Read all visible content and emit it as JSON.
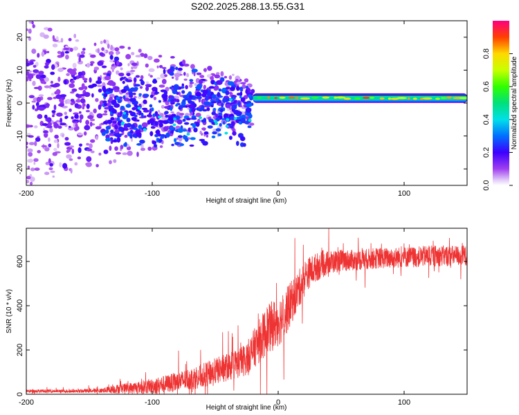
{
  "figure": {
    "title": "S202.2025.288.13.55.G31"
  },
  "chart_data": [
    {
      "type": "heatmap",
      "name": "spectrogram",
      "xlabel": "Height of straight line (km)",
      "ylabel": "Frequency (Hz)",
      "xlim": [
        -200,
        150
      ],
      "ylim": [
        -25,
        25
      ],
      "xticks": [
        -200,
        -100,
        0,
        100
      ],
      "yticks": [
        -20,
        -10,
        0,
        10,
        20
      ],
      "colorbar": {
        "label": "Normalized spectral amplitude",
        "range": [
          0.0,
          1.0
        ],
        "ticks": [
          0.0,
          0.2,
          0.4,
          0.6,
          0.8
        ]
      },
      "features": {
        "scatter_region_x": [
          -200,
          -20
        ],
        "tone_region_x": [
          -20,
          150
        ],
        "tone_center_hz": 1.5,
        "tone_peak_amplitude": 0.95
      }
    },
    {
      "type": "line",
      "name": "snr",
      "xlabel": "Height of straight line (km)",
      "ylabel": "SNR (10 * v/v)",
      "xlim": [
        -200,
        150
      ],
      "ylim": [
        0,
        750
      ],
      "xticks": [
        -200,
        -100,
        0,
        100
      ],
      "yticks": [
        0,
        200,
        400,
        600
      ],
      "color": "#ee3333",
      "series": [
        {
          "name": "SNR",
          "x": [
            -200,
            -180,
            -160,
            -140,
            -130,
            -120,
            -110,
            -100,
            -90,
            -80,
            -70,
            -60,
            -50,
            -40,
            -30,
            -25,
            -20,
            -15,
            -10,
            -5,
            0,
            5,
            10,
            15,
            20,
            25,
            30,
            40,
            50,
            60,
            70,
            80,
            90,
            100,
            110,
            120,
            130,
            140,
            150
          ],
          "baseline": [
            15,
            15,
            15,
            18,
            25,
            30,
            35,
            40,
            50,
            60,
            75,
            90,
            110,
            130,
            150,
            170,
            210,
            250,
            290,
            320,
            340,
            370,
            420,
            470,
            520,
            560,
            580,
            600,
            610,
            610,
            615,
            620,
            620,
            625,
            625,
            630,
            630,
            630,
            630
          ],
          "spread": [
            15,
            15,
            15,
            20,
            40,
            45,
            60,
            70,
            80,
            90,
            100,
            110,
            120,
            130,
            140,
            150,
            170,
            200,
            220,
            230,
            230,
            220,
            200,
            180,
            160,
            140,
            130,
            110,
            100,
            95,
            95,
            95,
            95,
            95,
            95,
            95,
            95,
            95,
            95
          ]
        }
      ]
    }
  ]
}
